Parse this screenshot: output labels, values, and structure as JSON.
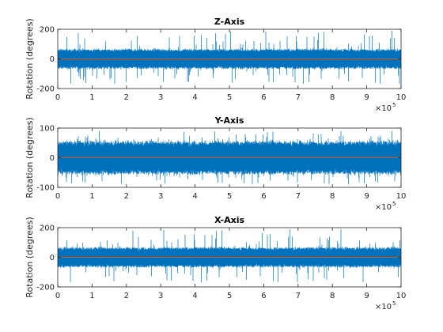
{
  "chart_data": [
    {
      "type": "line",
      "title": "Z-Axis",
      "ylabel": "Rotation (degrees)",
      "xlabel": "",
      "xlim": [
        0,
        10
      ],
      "ylim": [
        -200,
        200
      ],
      "xticks": [
        "0",
        "1",
        "2",
        "3",
        "4",
        "5",
        "6",
        "7",
        "8",
        "9",
        "10"
      ],
      "yticks": [
        "-200",
        "0",
        "200"
      ],
      "x_multiplier": "×10",
      "x_multiplier_exp": "5",
      "series": [
        {
          "color": "#0072bd",
          "kind": "noise",
          "band": [
            -60,
            60
          ],
          "envelope": [
            -170,
            190
          ]
        },
        {
          "color": "#d95319",
          "kind": "constant",
          "value": 0
        }
      ],
      "grid": false
    },
    {
      "type": "line",
      "title": "Y-Axis",
      "ylabel": "Rotation (degrees)",
      "xlabel": "",
      "xlim": [
        0,
        10
      ],
      "ylim": [
        -100,
        100
      ],
      "xticks": [
        "0",
        "1",
        "2",
        "3",
        "4",
        "5",
        "6",
        "7",
        "8",
        "9",
        "10"
      ],
      "yticks": [
        "-100",
        "0",
        "100"
      ],
      "x_multiplier": "×10",
      "x_multiplier_exp": "5",
      "series": [
        {
          "color": "#0072bd",
          "kind": "noise",
          "band": [
            -50,
            50
          ],
          "envelope": [
            -90,
            90
          ]
        },
        {
          "color": "#d95319",
          "kind": "constant",
          "value": 0
        }
      ],
      "grid": false
    },
    {
      "type": "line",
      "title": "X-Axis",
      "ylabel": "Rotation (degrees)",
      "xlabel": "",
      "xlim": [
        0,
        10
      ],
      "ylim": [
        -200,
        200
      ],
      "xticks": [
        "0",
        "1",
        "2",
        "3",
        "4",
        "5",
        "6",
        "7",
        "8",
        "9",
        "10"
      ],
      "yticks": [
        "-200",
        "0",
        "200"
      ],
      "x_multiplier": "×10",
      "x_multiplier_exp": "5",
      "series": [
        {
          "color": "#0072bd",
          "kind": "noise",
          "band": [
            -60,
            60
          ],
          "envelope": [
            -170,
            190
          ]
        },
        {
          "color": "#d95319",
          "kind": "constant",
          "value": 0
        }
      ],
      "grid": false
    }
  ]
}
